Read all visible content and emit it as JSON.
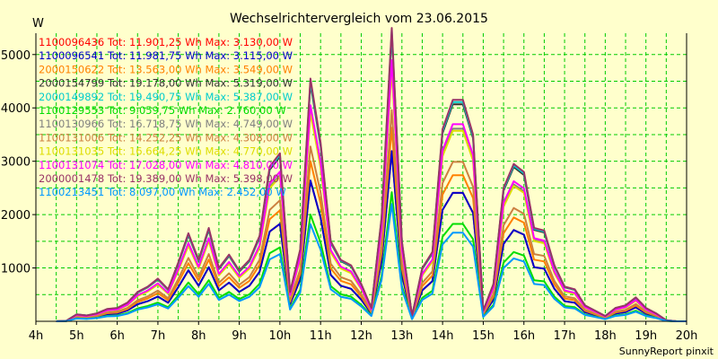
{
  "chart_data": {
    "type": "line",
    "title": "Wechselrichtervergleich vom 23.06.2015",
    "ylabel": "W",
    "xlabel": "",
    "footer": "SunnyReport pinxit",
    "xlim": [
      4,
      20
    ],
    "ylim": [
      0,
      5400
    ],
    "y_ticks": [
      1000,
      2000,
      3000,
      4000,
      5000
    ],
    "x_ticks": [
      4,
      5,
      6,
      7,
      8,
      9,
      10,
      11,
      12,
      13,
      14,
      15,
      16,
      17,
      18,
      19,
      20
    ],
    "x_tick_labels": [
      "4h",
      "5h",
      "6h",
      "7h",
      "8h",
      "9h",
      "10h",
      "11h",
      "12h",
      "13h",
      "14h",
      "15h",
      "16h",
      "17h",
      "18h",
      "19h",
      "20h"
    ],
    "grid": true,
    "legend_position": "top-left",
    "x": [
      4.5,
      4.75,
      5.0,
      5.25,
      5.5,
      5.75,
      6.0,
      6.25,
      6.5,
      6.75,
      7.0,
      7.25,
      7.5,
      7.75,
      8.0,
      8.25,
      8.5,
      8.75,
      9.0,
      9.25,
      9.5,
      9.75,
      10.0,
      10.25,
      10.5,
      10.75,
      11.0,
      11.25,
      11.5,
      11.75,
      12.0,
      12.25,
      12.5,
      12.75,
      13.0,
      13.25,
      13.5,
      13.75,
      14.0,
      14.25,
      14.5,
      14.75,
      15.0,
      15.25,
      15.5,
      15.75,
      16.0,
      16.25,
      16.5,
      16.75,
      17.0,
      17.25,
      17.5,
      17.75,
      18.0,
      18.25,
      18.5,
      18.75,
      19.0,
      19.25,
      19.5,
      19.75,
      20.0
    ],
    "series": [
      {
        "name": "1100096436 Tot: 11.901,25 Wh Max: 3.130,00 W",
        "color": "#ff0000",
        "scale": 0.58
      },
      {
        "name": "1100096541 Tot: 11.981,75 Wh Max: 3.115,00 W",
        "color": "#0000cc",
        "scale": 0.58
      },
      {
        "name": "2000150622 Tot: 13.563,00 Wh Max: 3.549,00 W",
        "color": "#ff8000",
        "scale": 0.66
      },
      {
        "name": "2000154799 Tot: 19.178,00 Wh Max: 5.319,00 W",
        "color": "#333333",
        "scale": 0.98
      },
      {
        "name": "2000149892 Tot: 19.490,75 Wh Max: 5.387,00 W",
        "color": "#00cccc",
        "scale": 0.99
      },
      {
        "name": "1100129553 Tot: 9.059,75 Wh Max: 2.760,00 W",
        "color": "#00dd00",
        "scale": 0.44
      },
      {
        "name": "1100130966 Tot: 16.718,75 Wh Max: 4.749,00 W",
        "color": "#808080",
        "scale": 0.87
      },
      {
        "name": "1100131006 Tot: 14.252,25 Wh Max: 4.308,00 W",
        "color": "#cc8040",
        "scale": 0.72
      },
      {
        "name": "1100131035 Tot: 16.664,25 Wh Max: 4.770,00 W",
        "color": "#dddd00",
        "scale": 0.86
      },
      {
        "name": "1100131074 Tot: 17.028,00 Wh Max: 4.810,00 W",
        "color": "#ff00ff",
        "scale": 0.89
      },
      {
        "name": "2000001478 Tot: 19.389,00 Wh Max: 5.398,00 W",
        "color": "#993366",
        "scale": 1.0
      },
      {
        "name": "1100213451 Tot: 8.097,00 Wh Max: 2.452,00 W",
        "color": "#0099ff",
        "scale": 0.4
      }
    ],
    "base_values": [
      0,
      10,
      130,
      110,
      150,
      230,
      250,
      350,
      550,
      650,
      800,
      600,
      1100,
      1650,
      1150,
      1750,
      1000,
      1250,
      950,
      1150,
      1600,
      2900,
      3150,
      550,
      1350,
      4550,
      3350,
      1500,
      1150,
      1050,
      700,
      250,
      1950,
      5500,
      1500,
      100,
      1000,
      1300,
      3600,
      4150,
      4150,
      3500,
      200,
      700,
      2500,
      2950,
      2800,
      1750,
      1700,
      1050,
      650,
      600,
      300,
      200,
      100,
      250,
      300,
      450,
      250,
      150,
      20,
      0,
      0
    ]
  }
}
